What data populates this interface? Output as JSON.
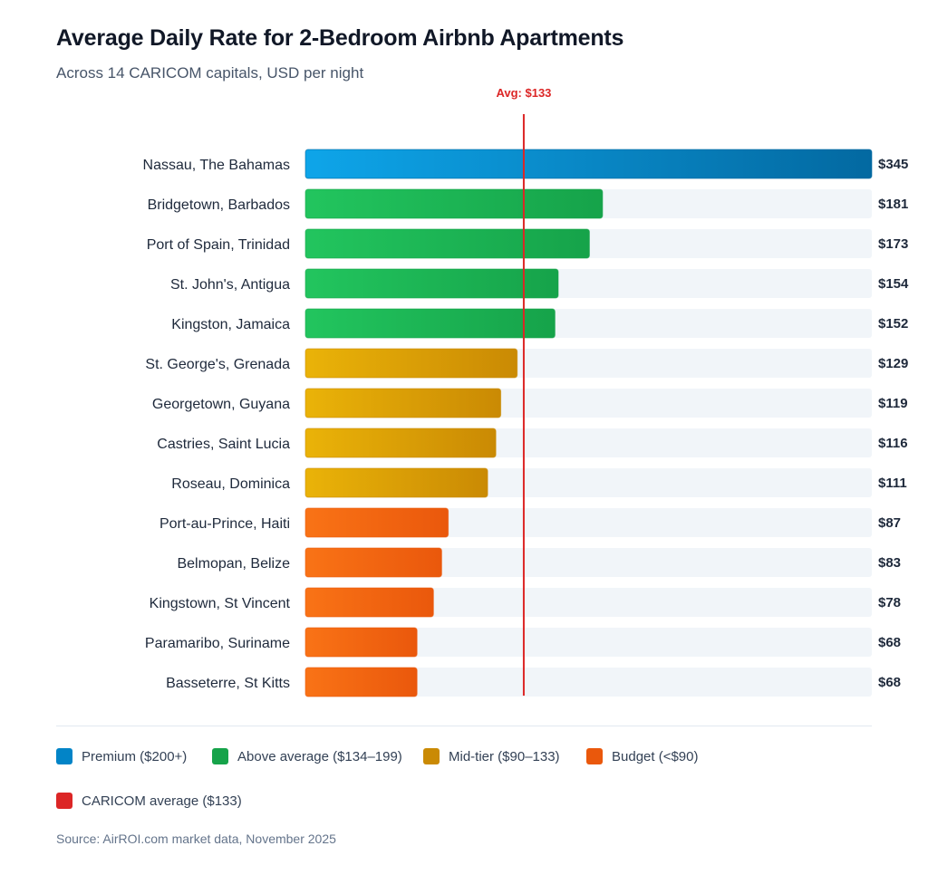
{
  "chart_data": {
    "type": "bar",
    "orientation": "horizontal",
    "title": "Average Daily Rate for 2-Bedroom Airbnb Apartments",
    "subtitle": "Across 14 CARICOM capitals, USD per night",
    "categories": [
      "Nassau, The Bahamas",
      "Bridgetown, Barbados",
      "Port of Spain, Trinidad",
      "St. John's, Antigua",
      "Kingston, Jamaica",
      "St. George's, Grenada",
      "Georgetown, Guyana",
      "Castries, Saint Lucia",
      "Roseau, Dominica",
      "Port-au-Prince, Haiti",
      "Belmopan, Belize",
      "Kingstown, St Vincent",
      "Paramaribo, Suriname",
      "Basseterre, St Kitts"
    ],
    "values": [
      345,
      181,
      173,
      154,
      152,
      129,
      119,
      116,
      111,
      87,
      83,
      78,
      68,
      68
    ],
    "value_labels": [
      "$345",
      "$181",
      "$173",
      "$154",
      "$152",
      "$129",
      "$119",
      "$116",
      "$111",
      "$87",
      "$83",
      "$78",
      "$68",
      "$68"
    ],
    "tiers": [
      "premium",
      "above",
      "above",
      "above",
      "above",
      "mid",
      "mid",
      "mid",
      "mid",
      "budget",
      "budget",
      "budget",
      "budget",
      "budget"
    ],
    "xlim": [
      0,
      345
    ],
    "reference_line": {
      "value": 133,
      "label": "Avg: $133",
      "color": "#dc2626"
    },
    "tier_colors": {
      "premium": [
        "#0ea5e9",
        "#0369a1"
      ],
      "above": [
        "#22c55e",
        "#16a34a"
      ],
      "mid": [
        "#eab308",
        "#ca8a04"
      ],
      "budget": [
        "#f97316",
        "#ea580c"
      ]
    },
    "track_color": "#f1f5f9"
  },
  "legend": [
    {
      "label": "Premium ($200+)",
      "color": "#0284c7"
    },
    {
      "label": "Above average ($134–199)",
      "color": "#16a34a"
    },
    {
      "label": "Mid-tier ($90–133)",
      "color": "#ca8a04"
    },
    {
      "label": "Budget (<$90)",
      "color": "#ea580c"
    },
    {
      "label": "CARICOM average ($133)",
      "color": "#dc2626"
    }
  ],
  "source": "Source: AirROI.com market data, November 2025"
}
